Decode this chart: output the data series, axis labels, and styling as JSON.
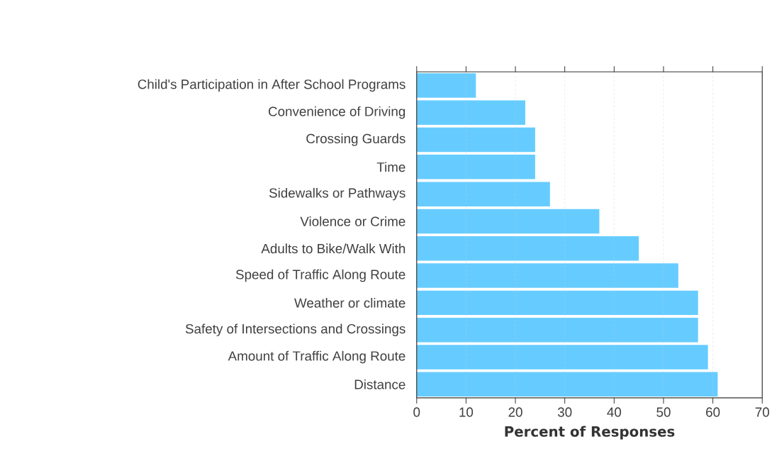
{
  "chart_data": {
    "type": "bar",
    "orientation": "horizontal",
    "xlabel": "Percent of Responses",
    "categories": [
      "Child's Participation in After School Programs",
      "Convenience of Driving",
      "Crossing Guards",
      "Time",
      "Sidewalks or Pathways",
      "Violence or Crime",
      "Adults to Bike/Walk With",
      "Speed of Traffic Along Route",
      "Weather or climate",
      "Safety of Intersections and Crossings",
      "Amount of Traffic Along Route",
      "Distance"
    ],
    "values": [
      12,
      22,
      24,
      24,
      27,
      37,
      45,
      53,
      57,
      57,
      59,
      61
    ],
    "color": "#66ccff",
    "xlim": [
      0,
      70
    ],
    "xticks": [
      0,
      10,
      20,
      30,
      40,
      50,
      60,
      70
    ],
    "grid": "x"
  }
}
